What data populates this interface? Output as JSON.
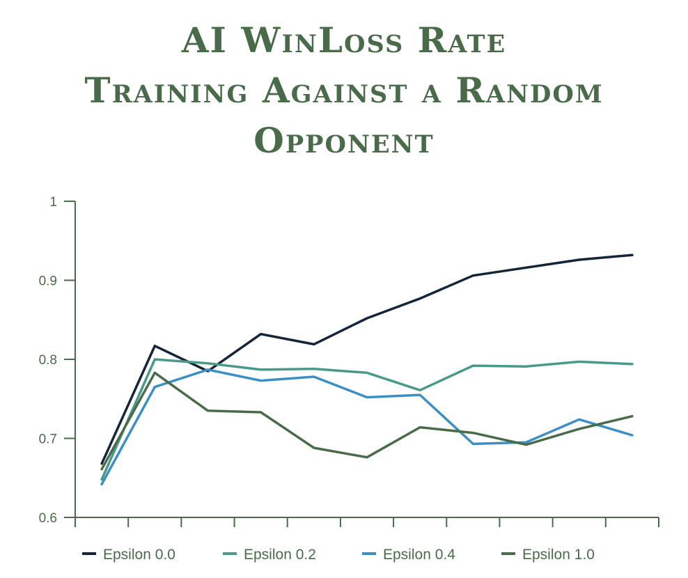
{
  "chart_data": {
    "type": "line",
    "title_lines": [
      "AI WinLoss Rate",
      "Training Against a Random",
      "Opponent"
    ],
    "xlabel": "",
    "ylabel": "",
    "ylim": [
      0.6,
      1
    ],
    "yticks": [
      0.6,
      0.7,
      0.8,
      0.9,
      1
    ],
    "ytick_labels": [
      "0.6",
      "0.7",
      "0.8",
      "0.9",
      "1"
    ],
    "x_count": 11,
    "grid": false,
    "legend_position": "bottom",
    "series": [
      {
        "name": "Epsilon 0.0",
        "color": "#14253a",
        "values": [
          0.668,
          0.817,
          0.785,
          0.832,
          0.819,
          0.852,
          0.877,
          0.906,
          0.916,
          0.926,
          0.932
        ]
      },
      {
        "name": "Epsilon 0.2",
        "color": "#4a9a8a",
        "values": [
          0.648,
          0.8,
          0.795,
          0.787,
          0.788,
          0.783,
          0.761,
          0.792,
          0.791,
          0.797,
          0.794
        ]
      },
      {
        "name": "Epsilon 0.4",
        "color": "#3a8fc7",
        "values": [
          0.642,
          0.765,
          0.787,
          0.773,
          0.778,
          0.752,
          0.755,
          0.693,
          0.695,
          0.724,
          0.704
        ]
      },
      {
        "name": "Epsilon 1.0",
        "color": "#4a6b4a",
        "values": [
          0.661,
          0.783,
          0.735,
          0.733,
          0.688,
          0.676,
          0.714,
          0.707,
          0.692,
          0.712,
          0.728
        ]
      }
    ]
  }
}
